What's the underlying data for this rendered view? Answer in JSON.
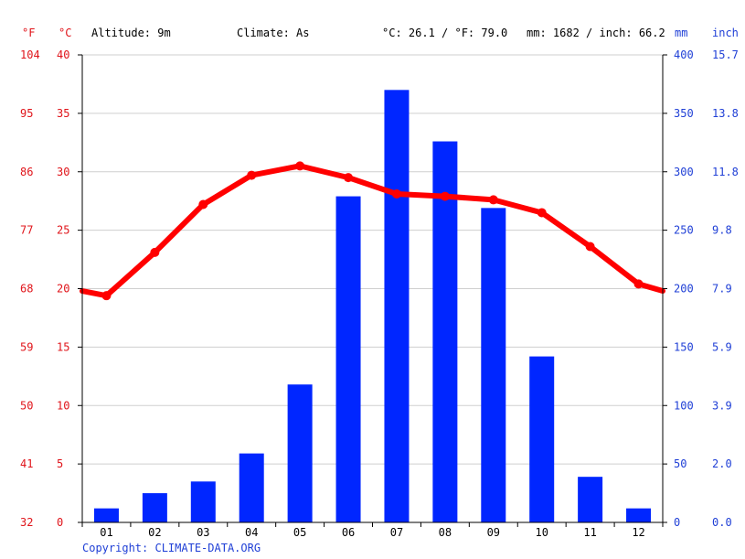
{
  "header": {
    "unit_f": "°F",
    "unit_c": "°C",
    "altitude": "Altitude: 9m",
    "climate": "Climate: As",
    "temp_summary": "°C: 26.1 / °F: 79.0",
    "precip_summary": "mm: 1682 / inch: 66.2",
    "unit_mm": "mm",
    "unit_inch": "inch"
  },
  "colors": {
    "temperature": "#ff0000",
    "precipitation": "#0026ff",
    "label_red": "#e0141a",
    "label_blue": "#1f3fd6"
  },
  "axes": {
    "f_ticks": [
      "32",
      "41",
      "50",
      "59",
      "68",
      "77",
      "86",
      "95",
      "104"
    ],
    "c_ticks": [
      "0",
      "5",
      "10",
      "15",
      "20",
      "25",
      "30",
      "35",
      "40"
    ],
    "mm_ticks": [
      "0",
      "50",
      "100",
      "150",
      "200",
      "250",
      "300",
      "350",
      "400"
    ],
    "inch_ticks": [
      "0.0",
      "2.0",
      "3.9",
      "5.9",
      "7.9",
      "9.8",
      "11.8",
      "13.8",
      "15.7"
    ]
  },
  "chart_data": {
    "type": "bar",
    "categories": [
      "01",
      "02",
      "03",
      "04",
      "05",
      "06",
      "07",
      "08",
      "09",
      "10",
      "11",
      "12"
    ],
    "grid": true,
    "series": [
      {
        "type": "bar",
        "axis": "mm",
        "values": [
          12,
          25,
          35,
          59,
          118,
          279,
          370,
          326,
          269,
          142,
          39,
          12
        ]
      },
      {
        "type": "line",
        "axis": "c",
        "values": [
          19.4,
          23.1,
          27.2,
          29.7,
          30.5,
          29.5,
          28.1,
          27.9,
          27.6,
          26.5,
          23.6,
          20.4
        ]
      }
    ],
    "ylim_c": [
      0,
      40
    ],
    "ylim_mm": [
      0,
      400
    ],
    "edge_left_c": 19.8,
    "edge_right_c": 19.8
  },
  "footer": {
    "copyright": "Copyright: CLIMATE-DATA.ORG"
  }
}
